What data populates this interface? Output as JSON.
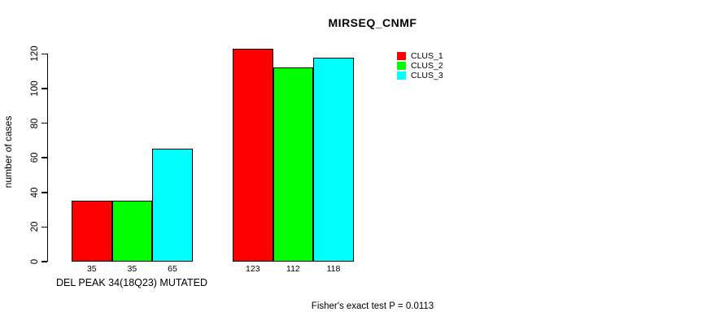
{
  "title": "MIRSEQ_CNMF",
  "footer": "Fisher's exact test P = 0.0113",
  "chart_data": {
    "type": "bar",
    "title": "MIRSEQ_CNMF",
    "xlabel": "",
    "ylabel": "number of cases",
    "ylim": [
      0,
      120
    ],
    "yticks": [
      0,
      20,
      40,
      60,
      80,
      100,
      120
    ],
    "grid": false,
    "legend_position": "top-right",
    "series": [
      {
        "name": "CLUS_1",
        "color": "#ff0000"
      },
      {
        "name": "CLUS_2",
        "color": "#00ff00"
      },
      {
        "name": "CLUS_3",
        "color": "#00ffff"
      }
    ],
    "groups": [
      {
        "label": "DEL PEAK 34(18Q23) MUTATED",
        "values": [
          35,
          35,
          65
        ]
      },
      {
        "label": "",
        "values": [
          123,
          112,
          118
        ]
      }
    ],
    "annotation": "Fisher's exact test P = 0.0113"
  }
}
